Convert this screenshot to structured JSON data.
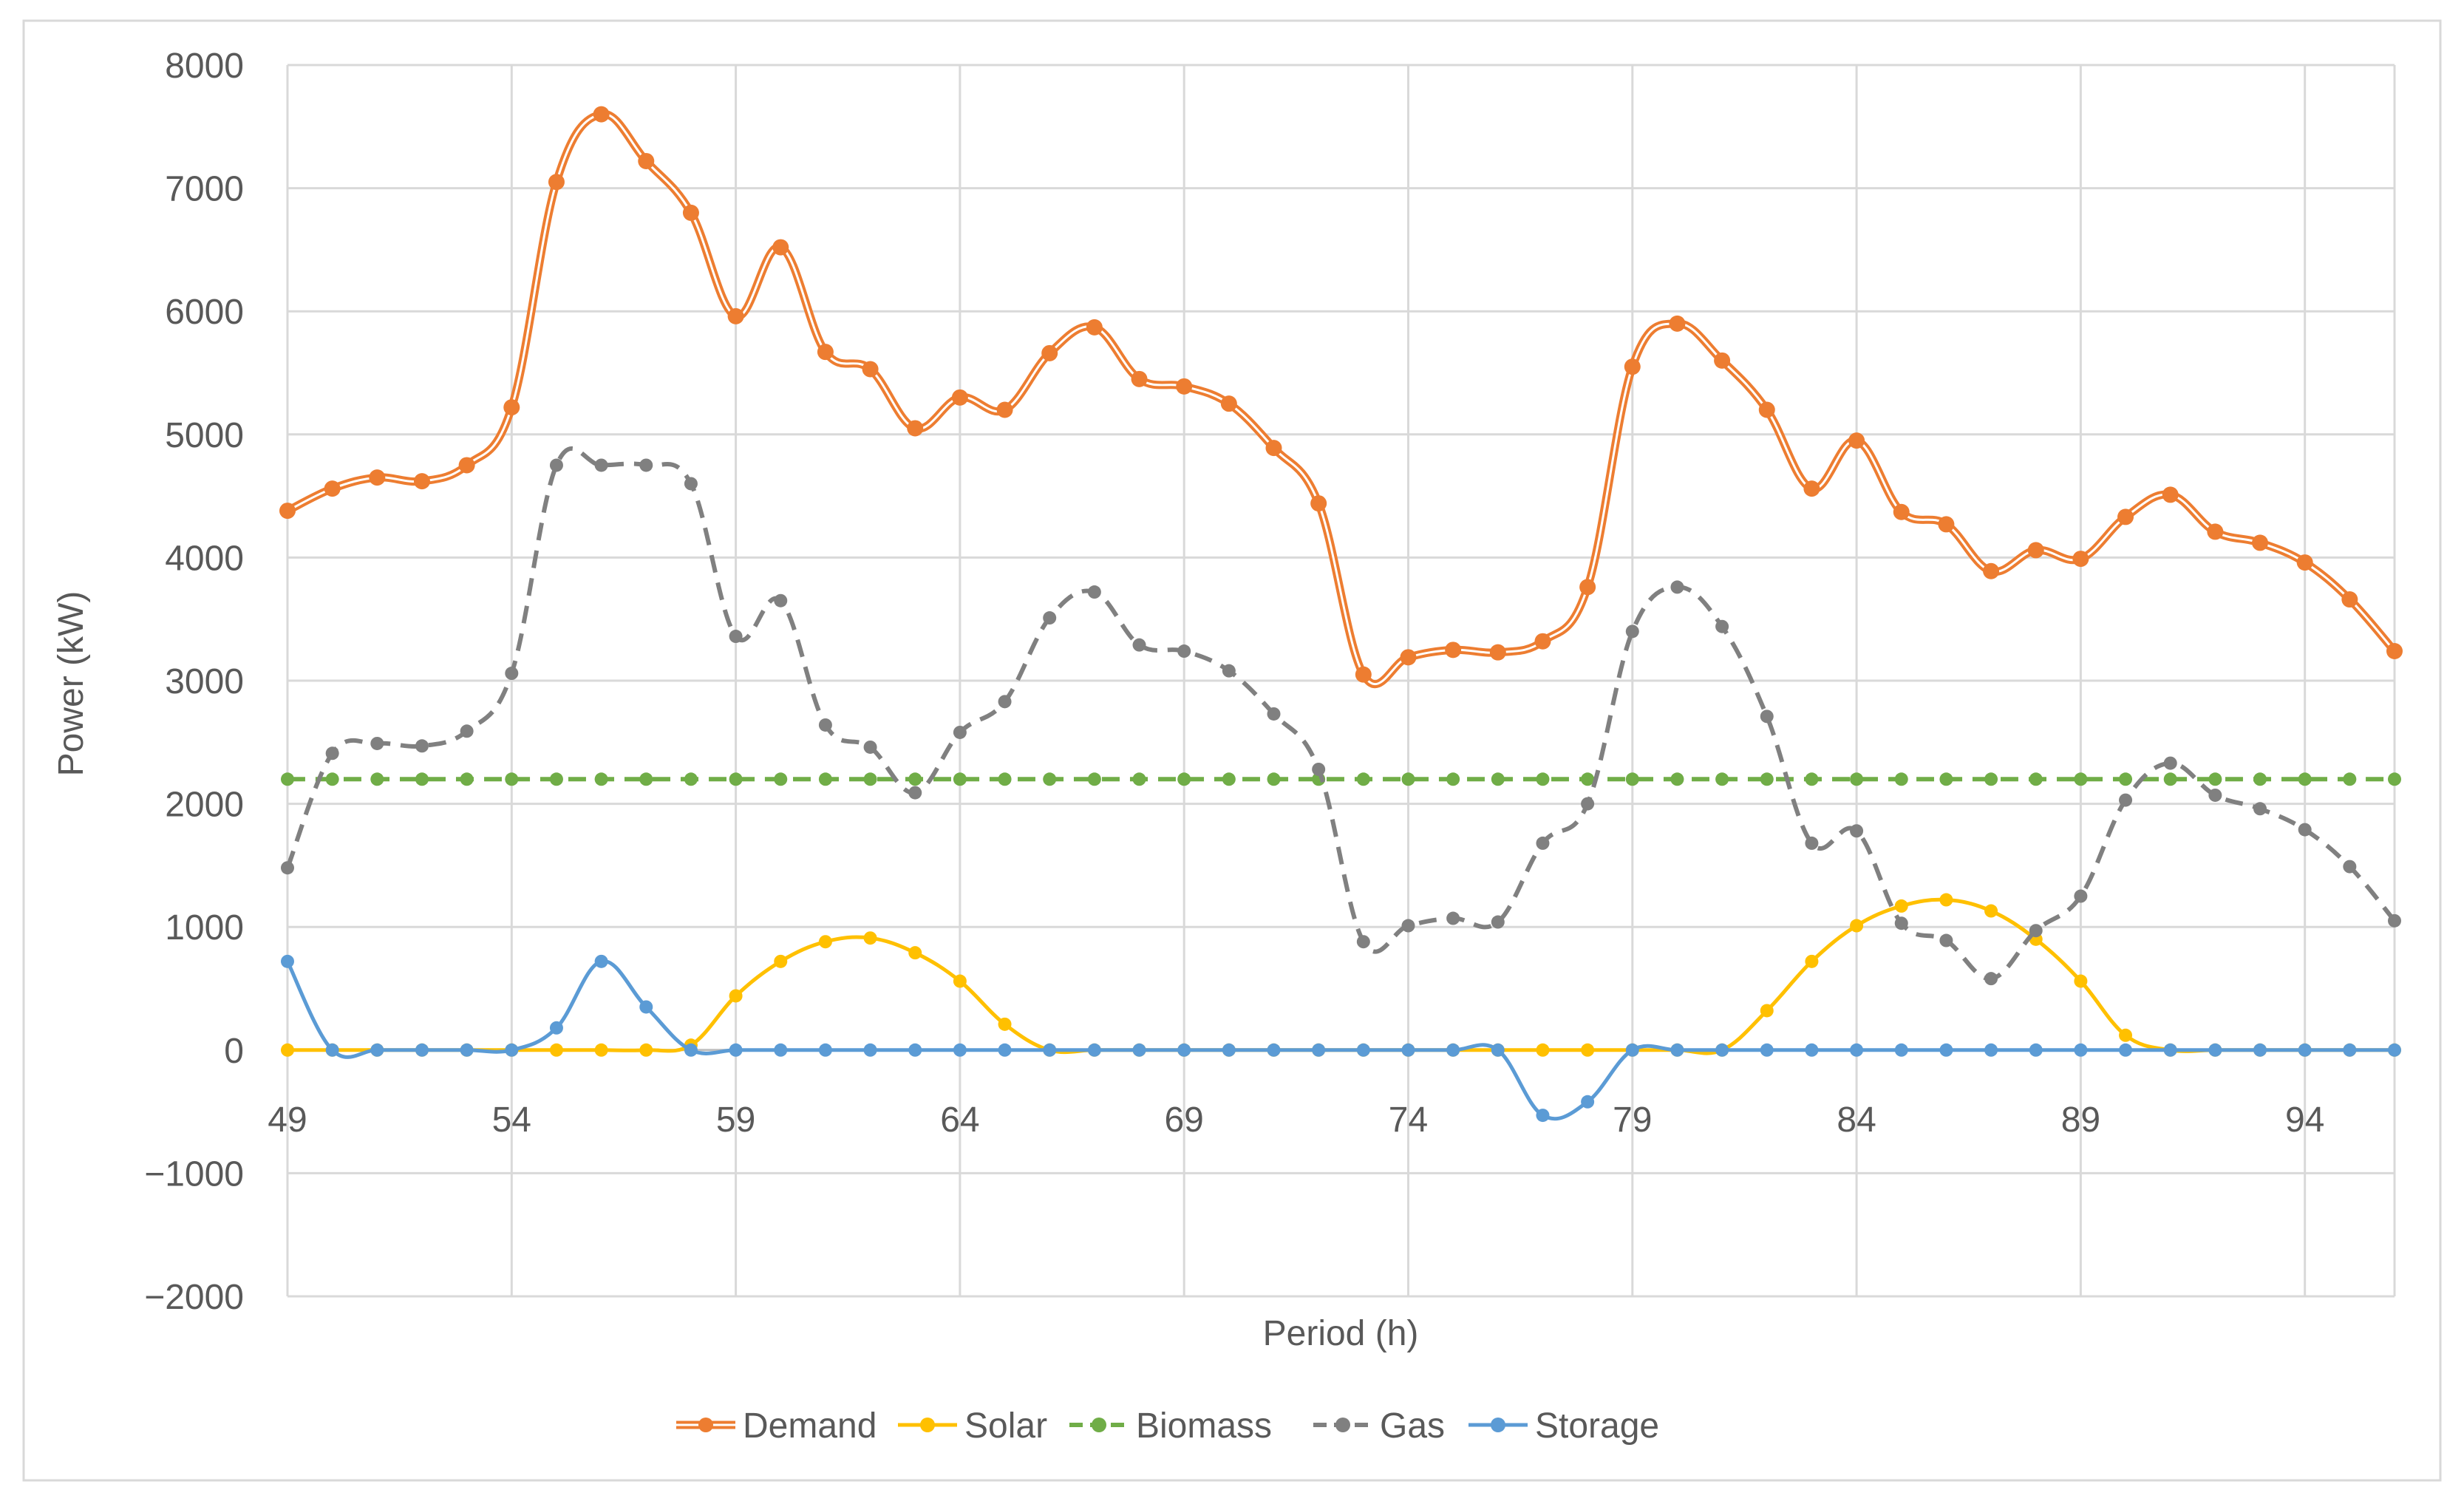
{
  "chart_data": {
    "type": "line",
    "title": "",
    "xlabel": "Period (h)",
    "ylabel": "Power (kW)",
    "xlim": [
      49,
      96
    ],
    "ylim": [
      -2000,
      8000
    ],
    "x_ticks": [
      49,
      54,
      59,
      64,
      69,
      74,
      79,
      84,
      89,
      94
    ],
    "x_tick_labels": [
      "49",
      "54",
      "59",
      "64",
      "69",
      "74",
      "79",
      "84",
      "89",
      "94"
    ],
    "y_ticks": [
      -2000,
      -1000,
      0,
      1000,
      2000,
      3000,
      4000,
      5000,
      6000,
      7000,
      8000
    ],
    "y_tick_labels": [
      "−2000",
      "−1000",
      "0",
      "1000",
      "2000",
      "3000",
      "4000",
      "5000",
      "6000",
      "7000",
      "8000"
    ],
    "grid": true,
    "legend_position": "bottom",
    "x": [
      49,
      50,
      51,
      52,
      53,
      54,
      55,
      56,
      57,
      58,
      59,
      60,
      61,
      62,
      63,
      64,
      65,
      66,
      67,
      68,
      69,
      70,
      71,
      72,
      73,
      74,
      75,
      76,
      77,
      78,
      79,
      80,
      81,
      82,
      83,
      84,
      85,
      86,
      87,
      88,
      89,
      90,
      91,
      92,
      93,
      94,
      95,
      96
    ],
    "series": [
      {
        "name": "Demand",
        "color": "#ED7D31",
        "style": "double-solid",
        "values": [
          4380,
          4560,
          4650,
          4620,
          4750,
          5220,
          7050,
          7600,
          7220,
          6800,
          5960,
          6520,
          5670,
          5530,
          5050,
          5300,
          5200,
          5660,
          5870,
          5450,
          5390,
          5250,
          4890,
          4440,
          3050,
          3190,
          3250,
          3230,
          3320,
          3760,
          5550,
          5900,
          5600,
          5200,
          4560,
          4950,
          4370,
          4270,
          3890,
          4060,
          3990,
          4330,
          4510,
          4210,
          4120,
          3960,
          3660,
          3240
        ]
      },
      {
        "name": "Solar",
        "color": "#FFC000",
        "style": "solid",
        "values": [
          0,
          0,
          0,
          0,
          0,
          0,
          0,
          0,
          0,
          40,
          440,
          720,
          880,
          910,
          790,
          560,
          210,
          0,
          0,
          0,
          0,
          0,
          0,
          0,
          0,
          0,
          0,
          0,
          0,
          0,
          0,
          0,
          0,
          320,
          720,
          1010,
          1170,
          1220,
          1130,
          900,
          560,
          120,
          0,
          0,
          0,
          0,
          0,
          0
        ]
      },
      {
        "name": "Biomass",
        "color": "#70AD47",
        "style": "dashed",
        "values": [
          2200,
          2200,
          2200,
          2200,
          2200,
          2200,
          2200,
          2200,
          2200,
          2200,
          2200,
          2200,
          2200,
          2200,
          2200,
          2200,
          2200,
          2200,
          2200,
          2200,
          2200,
          2200,
          2200,
          2200,
          2200,
          2200,
          2200,
          2200,
          2200,
          2200,
          2200,
          2200,
          2200,
          2200,
          2200,
          2200,
          2200,
          2200,
          2200,
          2200,
          2200,
          2200,
          2200,
          2200,
          2200,
          2200,
          2200,
          2200
        ]
      },
      {
        "name": "Gas",
        "color": "#808080",
        "style": "dashed",
        "values": [
          1480,
          2410,
          2490,
          2470,
          2590,
          3060,
          4750,
          4750,
          4750,
          4600,
          3360,
          3650,
          2640,
          2460,
          2090,
          2580,
          2830,
          3510,
          3720,
          3290,
          3240,
          3080,
          2730,
          2280,
          880,
          1010,
          1070,
          1040,
          1680,
          2000,
          3400,
          3760,
          3440,
          2710,
          1680,
          1780,
          1030,
          890,
          580,
          970,
          1250,
          2030,
          2330,
          2070,
          1960,
          1790,
          1490,
          1050
        ]
      },
      {
        "name": "Storage",
        "color": "#5B9BD5",
        "style": "solid",
        "values": [
          720,
          0,
          0,
          0,
          0,
          0,
          180,
          720,
          350,
          0,
          0,
          0,
          0,
          0,
          0,
          0,
          0,
          0,
          0,
          0,
          0,
          0,
          0,
          0,
          0,
          0,
          0,
          0,
          -530,
          -420,
          0,
          0,
          0,
          0,
          0,
          0,
          0,
          0,
          0,
          0,
          0,
          0,
          0,
          0,
          0,
          0,
          0,
          0
        ]
      }
    ]
  }
}
